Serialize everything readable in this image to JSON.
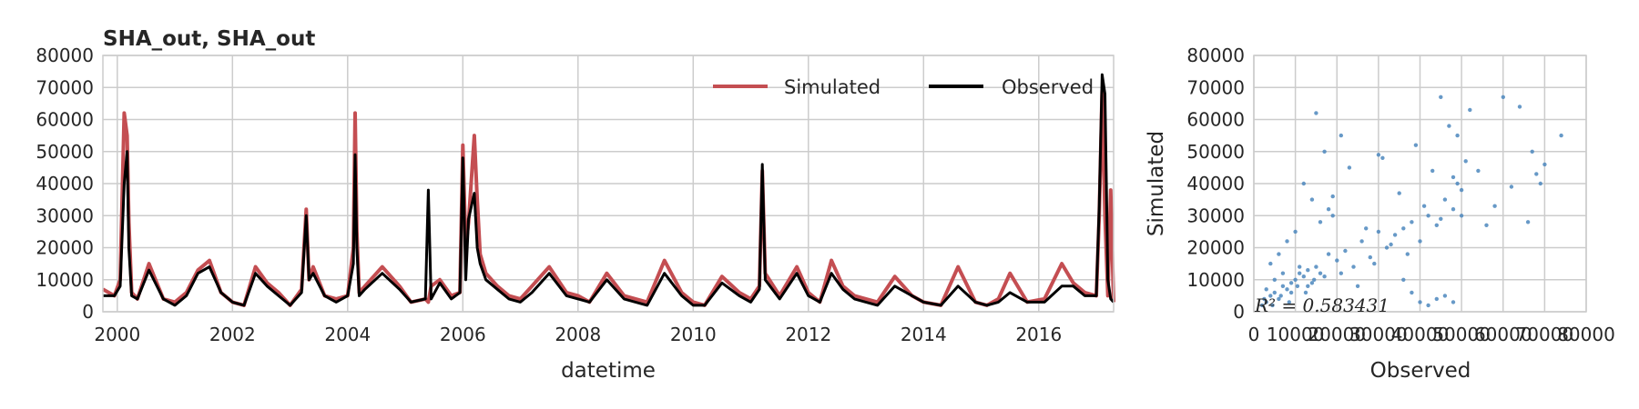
{
  "colors": {
    "simulated": "#c44e52",
    "observed": "#000000",
    "scatter": "#4c87bd",
    "grid": "#cccccc"
  },
  "chart_data": [
    {
      "type": "line",
      "title": "SHA_out, SHA_out",
      "xlabel": "datetime",
      "ylabel": "",
      "xlim": [
        1999.75,
        2017.3
      ],
      "ylim": [
        0,
        80000
      ],
      "x_ticks": [
        "2000",
        "2002",
        "2004",
        "2006",
        "2008",
        "2010",
        "2012",
        "2014",
        "2016"
      ],
      "y_ticks": [
        "0",
        "10000",
        "20000",
        "30000",
        "40000",
        "50000",
        "60000",
        "70000",
        "80000"
      ],
      "grid": true,
      "legend": "top-right",
      "series": [
        {
          "name": "Simulated",
          "x": [
            1999.75,
            1999.95,
            2000.05,
            2000.12,
            2000.17,
            2000.2,
            2000.25,
            2000.35,
            2000.55,
            2000.8,
            2001.0,
            2001.2,
            2001.4,
            2001.6,
            2001.8,
            2002.0,
            2002.2,
            2002.4,
            2002.6,
            2002.8,
            2003.0,
            2003.2,
            2003.28,
            2003.33,
            2003.4,
            2003.6,
            2003.8,
            2004.0,
            2004.1,
            2004.13,
            2004.16,
            2004.2,
            2004.3,
            2004.6,
            2004.9,
            2005.1,
            2005.35,
            2005.4,
            2005.45,
            2005.6,
            2005.8,
            2005.95,
            2006.0,
            2006.05,
            2006.1,
            2006.2,
            2006.25,
            2006.3,
            2006.4,
            2006.6,
            2006.8,
            2007.0,
            2007.2,
            2007.5,
            2007.8,
            2008.0,
            2008.2,
            2008.5,
            2008.8,
            2009.0,
            2009.2,
            2009.5,
            2009.8,
            2010.0,
            2010.2,
            2010.5,
            2010.8,
            2011.0,
            2011.15,
            2011.2,
            2011.25,
            2011.5,
            2011.8,
            2012.0,
            2012.2,
            2012.4,
            2012.6,
            2012.8,
            2013.0,
            2013.2,
            2013.5,
            2013.8,
            2014.0,
            2014.3,
            2014.6,
            2014.9,
            2015.1,
            2015.3,
            2015.5,
            2015.8,
            2016.1,
            2016.4,
            2016.6,
            2016.8,
            2017.0,
            2017.05,
            2017.1,
            2017.15,
            2017.2,
            2017.25,
            2017.3
          ],
          "y": [
            7000,
            5000,
            10000,
            62000,
            55000,
            28000,
            6000,
            4000,
            15000,
            4000,
            3000,
            6000,
            13000,
            16000,
            6000,
            3000,
            2000,
            14000,
            9000,
            6000,
            2000,
            7000,
            32000,
            10000,
            14000,
            5000,
            4000,
            5000,
            20000,
            62000,
            25000,
            6000,
            8000,
            14000,
            8000,
            3000,
            4000,
            3000,
            8000,
            10000,
            5000,
            6000,
            52000,
            20000,
            28000,
            55000,
            35000,
            18000,
            12000,
            8000,
            5000,
            4000,
            8000,
            14000,
            6000,
            5000,
            3000,
            12000,
            5000,
            4000,
            3000,
            16000,
            6000,
            3000,
            2000,
            11000,
            6000,
            4000,
            8000,
            44000,
            12000,
            5000,
            14000,
            6000,
            3000,
            16000,
            8000,
            5000,
            4000,
            3000,
            11000,
            5000,
            3000,
            2000,
            14000,
            3000,
            2000,
            4000,
            12000,
            3000,
            4000,
            15000,
            9000,
            6000,
            5000,
            30000,
            69000,
            30000,
            5000,
            38000,
            3000
          ]
        },
        {
          "name": "Observed",
          "x": [
            1999.75,
            1999.95,
            2000.05,
            2000.12,
            2000.17,
            2000.2,
            2000.25,
            2000.35,
            2000.55,
            2000.8,
            2001.0,
            2001.2,
            2001.4,
            2001.6,
            2001.8,
            2002.0,
            2002.2,
            2002.4,
            2002.6,
            2002.8,
            2003.0,
            2003.2,
            2003.28,
            2003.33,
            2003.4,
            2003.6,
            2003.8,
            2004.0,
            2004.1,
            2004.13,
            2004.16,
            2004.2,
            2004.3,
            2004.6,
            2004.9,
            2005.1,
            2005.35,
            2005.4,
            2005.45,
            2005.6,
            2005.8,
            2005.95,
            2006.0,
            2006.05,
            2006.1,
            2006.2,
            2006.25,
            2006.3,
            2006.4,
            2006.6,
            2006.8,
            2007.0,
            2007.2,
            2007.5,
            2007.8,
            2008.0,
            2008.2,
            2008.5,
            2008.8,
            2009.0,
            2009.2,
            2009.5,
            2009.8,
            2010.0,
            2010.2,
            2010.5,
            2010.8,
            2011.0,
            2011.15,
            2011.2,
            2011.25,
            2011.5,
            2011.8,
            2012.0,
            2012.2,
            2012.4,
            2012.6,
            2012.8,
            2013.0,
            2013.2,
            2013.5,
            2013.8,
            2014.0,
            2014.3,
            2014.6,
            2014.9,
            2015.1,
            2015.3,
            2015.5,
            2015.8,
            2016.1,
            2016.4,
            2016.6,
            2016.8,
            2017.0,
            2017.05,
            2017.1,
            2017.15,
            2017.2,
            2017.25,
            2017.3
          ],
          "y": [
            5000,
            5000,
            8000,
            40000,
            50000,
            20000,
            5000,
            4000,
            13000,
            4000,
            2000,
            5000,
            12000,
            14000,
            6000,
            3000,
            2000,
            12000,
            8000,
            5000,
            2000,
            6000,
            30000,
            10000,
            12000,
            5000,
            3000,
            5000,
            15000,
            49000,
            20000,
            5000,
            7000,
            12000,
            7000,
            3000,
            4000,
            38000,
            4000,
            9000,
            4000,
            6000,
            48000,
            10000,
            29000,
            37000,
            20000,
            15000,
            10000,
            7000,
            4000,
            3000,
            6000,
            12000,
            5000,
            4000,
            3000,
            10000,
            4000,
            3000,
            2000,
            12000,
            5000,
            2000,
            2000,
            9000,
            5000,
            3000,
            7000,
            46000,
            10000,
            4000,
            12000,
            5000,
            3000,
            12000,
            7000,
            4000,
            3000,
            2000,
            8000,
            5000,
            3000,
            2000,
            8000,
            3000,
            2000,
            3000,
            6000,
            3000,
            3000,
            8000,
            8000,
            5000,
            5000,
            33000,
            74000,
            68000,
            10000,
            4000,
            3000
          ]
        }
      ]
    },
    {
      "type": "scatter",
      "title": "",
      "xlabel": "Observed",
      "ylabel": "Simulated",
      "xlim": [
        0,
        80000
      ],
      "ylim": [
        0,
        80000
      ],
      "x_ticks": [
        "0",
        "10000",
        "20000",
        "30000",
        "40000",
        "50000",
        "60000",
        "70000",
        "80000"
      ],
      "y_ticks": [
        "0",
        "10000",
        "20000",
        "30000",
        "40000",
        "50000",
        "60000",
        "70000",
        "80000"
      ],
      "grid": true,
      "annotation": "R² = 0.583431",
      "x": [
        2000,
        3000,
        4000,
        5000,
        6000,
        7000,
        8000,
        9000,
        10000,
        11000,
        12000,
        13000,
        14000,
        15000,
        3000,
        5000,
        7000,
        9000,
        11000,
        13000,
        2500,
        4500,
        6500,
        8500,
        10500,
        12500,
        14500,
        16000,
        17000,
        18000,
        20000,
        22000,
        24000,
        26000,
        28000,
        30000,
        32000,
        34000,
        36000,
        38000,
        40000,
        42000,
        44000,
        46000,
        48000,
        50000,
        21000,
        25000,
        29000,
        33000,
        37000,
        41000,
        45000,
        49000,
        19000,
        23000,
        27000,
        31000,
        35000,
        39000,
        43000,
        47000,
        15000,
        17000,
        19000,
        21000,
        12000,
        14000,
        16000,
        18000,
        8000,
        10000,
        6000,
        4000,
        36000,
        38000,
        40000,
        42000,
        44000,
        46000,
        48000,
        50000,
        48000,
        49000,
        51000,
        52000,
        56000,
        60000,
        64000,
        66000,
        67000,
        68000,
        69000,
        70000,
        74000,
        54000,
        58000,
        62000,
        45000,
        30000
      ],
      "y": [
        2000,
        3000,
        5000,
        6000,
        4000,
        8000,
        7000,
        9000,
        10000,
        12000,
        11000,
        13000,
        9000,
        14000,
        7000,
        10000,
        12000,
        6000,
        14000,
        8000,
        4000,
        2000,
        5000,
        3000,
        8000,
        6000,
        10000,
        12000,
        11000,
        18000,
        16000,
        19000,
        14000,
        22000,
        17000,
        25000,
        20000,
        24000,
        26000,
        28000,
        22000,
        30000,
        27000,
        35000,
        32000,
        38000,
        12000,
        8000,
        15000,
        21000,
        18000,
        33000,
        29000,
        40000,
        30000,
        45000,
        26000,
        48000,
        37000,
        52000,
        44000,
        58000,
        62000,
        50000,
        36000,
        55000,
        40000,
        35000,
        28000,
        32000,
        22000,
        25000,
        18000,
        15000,
        10000,
        6000,
        3000,
        2000,
        4000,
        5000,
        3000,
        30000,
        42000,
        55000,
        47000,
        63000,
        27000,
        67000,
        64000,
        28000,
        50000,
        43000,
        40000,
        46000,
        55000,
        44000,
        33000,
        39000,
        67000,
        49000
      ]
    }
  ]
}
